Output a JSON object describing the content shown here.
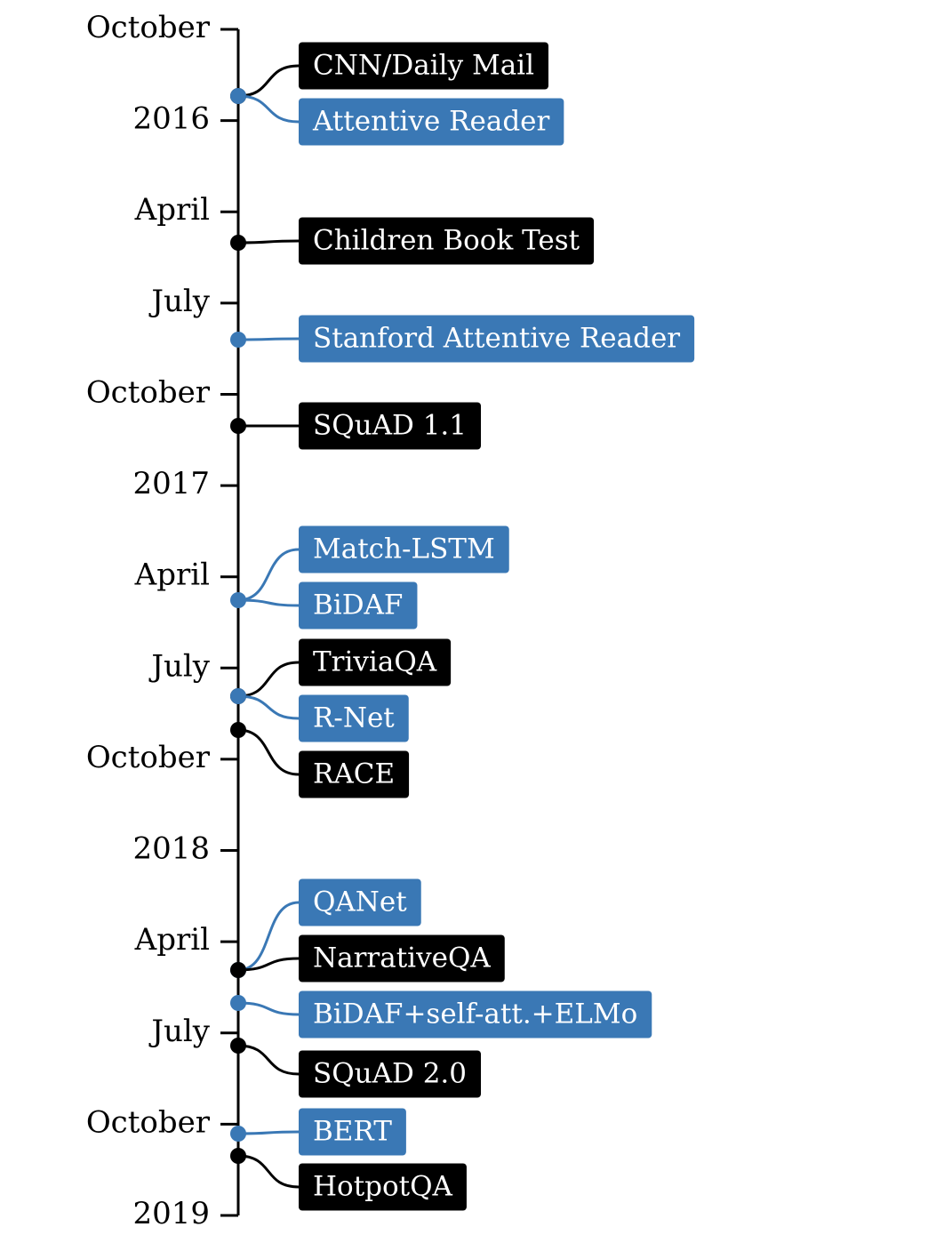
{
  "timeline": {
    "colors": {
      "dataset": "#000000",
      "model": "#3a78b5"
    },
    "ticks": [
      {
        "label": "October",
        "month": "2015-10"
      },
      {
        "label": "2016",
        "month": "2016-01"
      },
      {
        "label": "April",
        "month": "2016-04"
      },
      {
        "label": "July",
        "month": "2016-07"
      },
      {
        "label": "October",
        "month": "2016-10"
      },
      {
        "label": "2017",
        "month": "2017-01"
      },
      {
        "label": "April",
        "month": "2017-04"
      },
      {
        "label": "July",
        "month": "2017-07"
      },
      {
        "label": "October",
        "month": "2017-10"
      },
      {
        "label": "2018",
        "month": "2018-01"
      },
      {
        "label": "April",
        "month": "2018-04"
      },
      {
        "label": "July",
        "month": "2018-07"
      },
      {
        "label": "October",
        "month": "2018-10"
      },
      {
        "label": "2019",
        "month": "2019-01"
      }
    ],
    "events": [
      {
        "label": "CNN/Daily Mail",
        "kind": "dataset",
        "date": "2015-12"
      },
      {
        "label": "Attentive Reader",
        "kind": "model",
        "date": "2015-12"
      },
      {
        "label": "Children Book Test",
        "kind": "dataset",
        "date": "2016-05"
      },
      {
        "label": "Stanford Attentive Reader",
        "kind": "model",
        "date": "2016-08"
      },
      {
        "label": "SQuAD 1.1",
        "kind": "dataset",
        "date": "2016-11"
      },
      {
        "label": "Match-LSTM",
        "kind": "model",
        "date": "2017-05"
      },
      {
        "label": "BiDAF",
        "kind": "model",
        "date": "2017-05"
      },
      {
        "label": "TriviaQA",
        "kind": "dataset",
        "date": "2017-08"
      },
      {
        "label": "R-Net",
        "kind": "model",
        "date": "2017-08"
      },
      {
        "label": "RACE",
        "kind": "dataset",
        "date": "2017-09"
      },
      {
        "label": "QANet",
        "kind": "model",
        "date": "2018-05"
      },
      {
        "label": "NarrativeQA",
        "kind": "dataset",
        "date": "2018-05"
      },
      {
        "label": "BiDAF+self-att.+ELMo",
        "kind": "model",
        "date": "2018-06"
      },
      {
        "label": "SQuAD 2.0",
        "kind": "dataset",
        "date": "2018-07"
      },
      {
        "label": "BERT",
        "kind": "model",
        "date": "2018-11"
      },
      {
        "label": "HotpotQA",
        "kind": "dataset",
        "date": "2018-11"
      }
    ]
  }
}
